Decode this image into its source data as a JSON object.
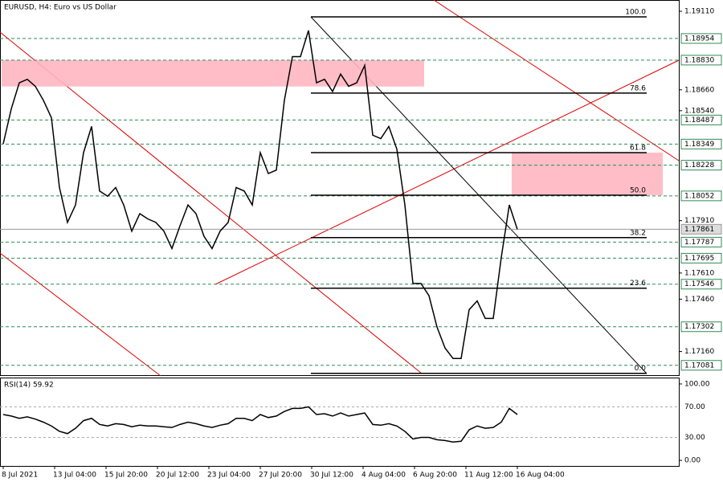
{
  "chart_data": {
    "type": "line",
    "title": "EURUSD, H4:  Euro vs US Dollar",
    "color": "#000000",
    "ylim": [
      1.1702,
      1.1917
    ],
    "yticks": [
      {
        "value": 1.1911,
        "label": "1.19110"
      },
      {
        "value": 1.1866,
        "label": "1.18660"
      },
      {
        "value": 1.1854,
        "label": "1.18540"
      },
      {
        "value": 1.1791,
        "label": "1.17910"
      },
      {
        "value": 1.1761,
        "label": "1.17610"
      },
      {
        "value": 1.1746,
        "label": "1.17460"
      },
      {
        "value": 1.1716,
        "label": "1.17160"
      }
    ],
    "levels": [
      1.18954,
      {
        "value": 1.1883,
        "label": "1.18830"
      },
      1.18487,
      1.18349,
      1.18228,
      1.18052,
      1.17787,
      1.17695,
      1.17546,
      1.17302,
      1.17081
    ],
    "current_price": 1.17861,
    "fib_levels": [
      {
        "ratio": {
          "value": 100,
          "label": "100.0"
        },
        "price": 1.19078
      },
      {
        "ratio": 78.6,
        "price": 1.18641
      },
      {
        "ratio": 61.8,
        "price": 1.183
      },
      {
        "ratio": {
          "value": 50,
          "label": "50.0"
        },
        "price": 1.18056
      },
      {
        "ratio": 38.2,
        "price": 1.17813
      },
      {
        "ratio": 23.6,
        "price": 1.17523
      },
      {
        "ratio": {
          "value": 0,
          "label": "0.0"
        },
        "price": 1.17035
      }
    ],
    "zones": [
      {
        "from": 1.18679,
        "to": 1.1883
      },
      {
        "from": 1.18056,
        "to": 1.183
      }
    ],
    "x_labels": [
      "8 Jul 2021",
      "13 Jul 04:00",
      "15 Jul 20:00",
      "20 Jul 12:00",
      "23 Jul 04:00",
      "27 Jul 20:00",
      "30 Jul 12:00",
      "4 Aug 04:00",
      "6 Aug 20:00",
      "11 Aug 12:00",
      "16 Aug 04:00"
    ],
    "values": [
      1.1835,
      1.1855,
      1.187,
      1.1872,
      1.1868,
      1.186,
      1.185,
      1.181,
      1.179,
      1.18,
      1.183,
      1.1845,
      1.1808,
      1.1805,
      1.181,
      1.18,
      1.1785,
      1.1795,
      1.1792,
      1.179,
      1.1785,
      1.1775,
      1.1788,
      1.18,
      1.1795,
      1.1782,
      1.1775,
      1.1785,
      1.179,
      1.181,
      1.1808,
      1.18,
      1.183,
      1.1818,
      1.182,
      1.186,
      1.1885,
      1.1885,
      1.19,
      1.187,
      1.1872,
      1.1865,
      1.1875,
      1.1868,
      1.187,
      1.188,
      1.184,
      1.1838,
      1.1845,
      1.1832,
      1.18,
      1.1755,
      1.1755,
      1.1748,
      1.173,
      1.1718,
      1.1712,
      1.1712,
      1.174,
      1.1745,
      1.1735,
      1.1735,
      1.177,
      1.18,
      1.1786
    ],
    "rsi": {
      "label": "RSI(14) 59.92",
      "ylim": [
        -7.3,
        107.3
      ],
      "yticks": [
        {
          "value": 100,
          "label": "100.00"
        },
        {
          "value": 70,
          "label": "70.00"
        },
        {
          "value": 30,
          "label": "30.00"
        },
        {
          "value": 0,
          "label": "0.00"
        }
      ],
      "values": [
        60,
        58,
        55,
        57,
        54,
        50,
        45,
        38,
        35,
        42,
        52,
        55,
        47,
        45,
        48,
        47,
        44,
        46,
        45,
        45,
        44,
        43,
        47,
        50,
        48,
        45,
        43,
        46,
        48,
        55,
        55,
        52,
        60,
        56,
        58,
        64,
        68,
        68,
        70,
        60,
        61,
        58,
        62,
        58,
        60,
        62,
        47,
        46,
        48,
        45,
        38,
        28,
        30,
        30,
        27,
        26,
        24,
        25,
        40,
        45,
        42,
        43,
        50,
        68,
        60
      ]
    }
  }
}
